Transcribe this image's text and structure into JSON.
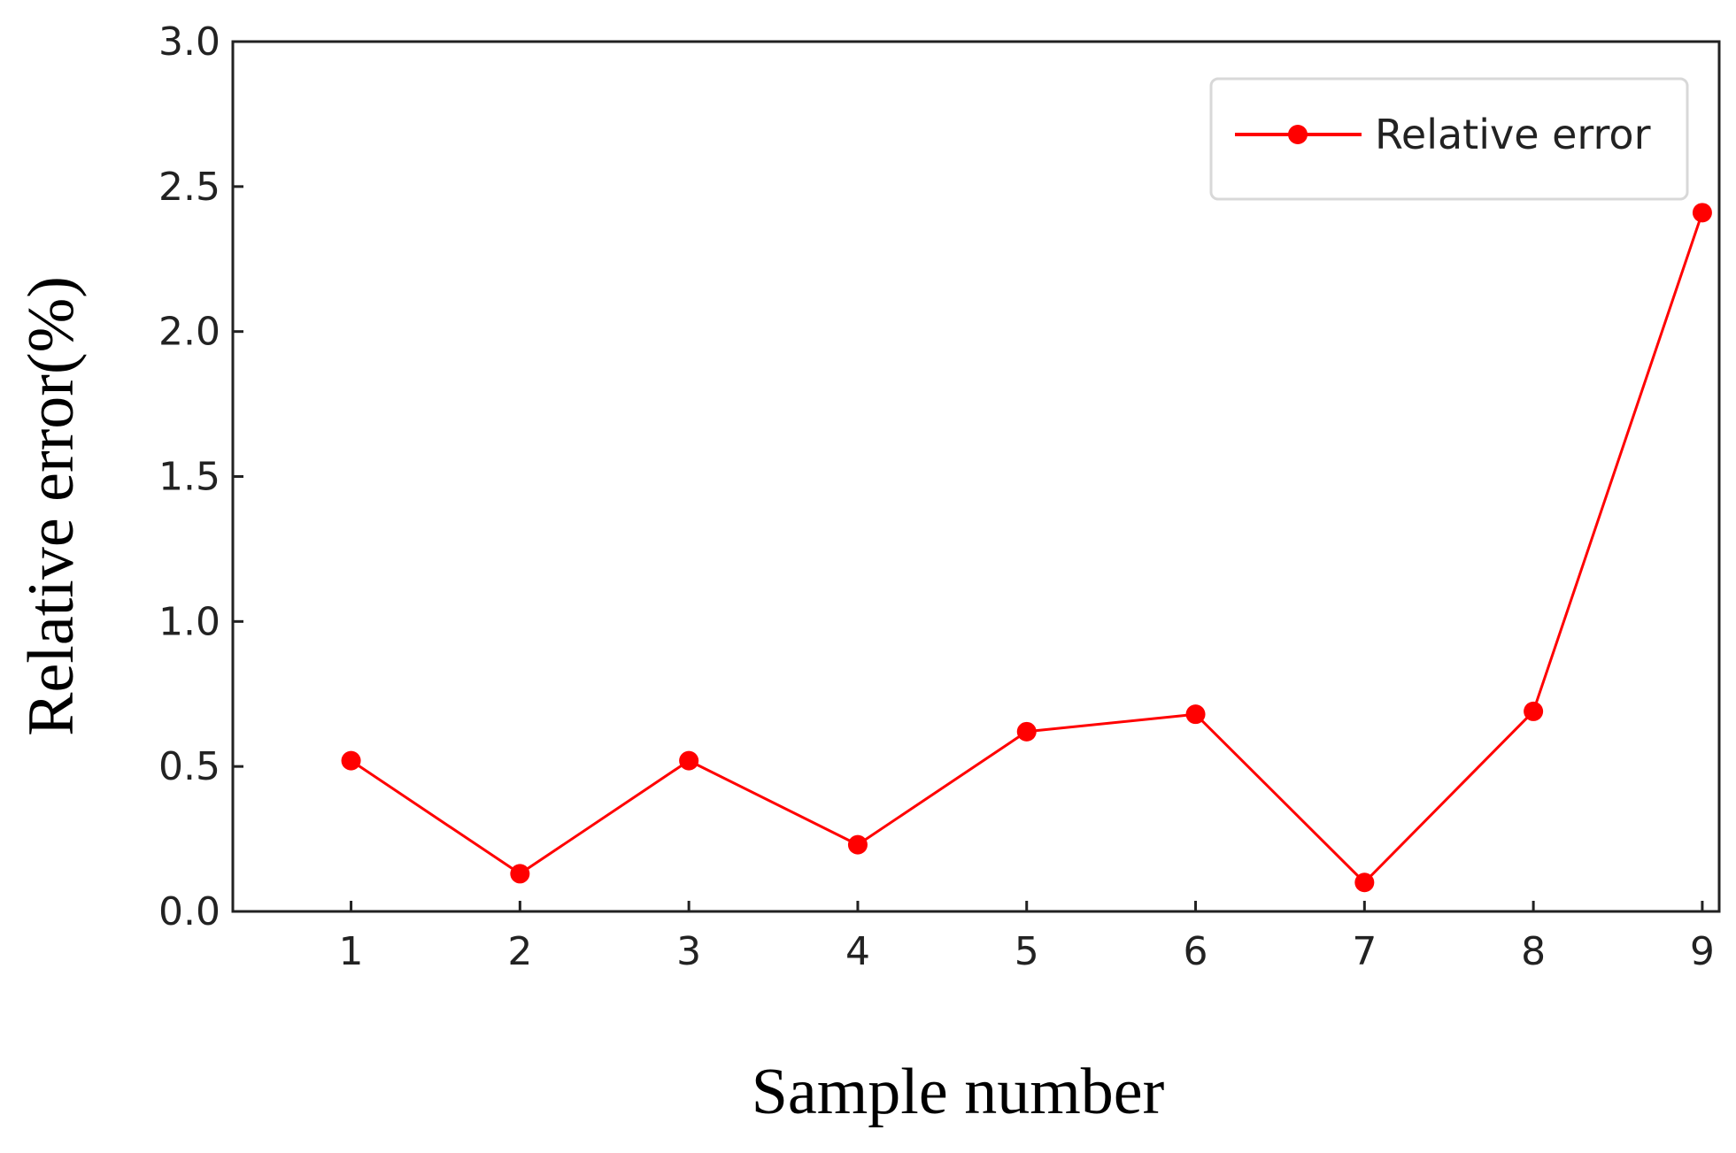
{
  "chart_data": {
    "type": "line",
    "x": [
      1,
      2,
      3,
      4,
      5,
      6,
      7,
      8,
      9
    ],
    "series": [
      {
        "name": "Relative error",
        "values": [
          0.52,
          0.13,
          0.52,
          0.23,
          0.62,
          0.68,
          0.1,
          0.69,
          2.41
        ]
      }
    ],
    "xlabel": "Sample number",
    "ylabel": "Relative error(%)",
    "xlim": [
      0.3,
      9.1
    ],
    "ylim": [
      0.0,
      3.0
    ],
    "xticks": [
      "1",
      "2",
      "3",
      "4",
      "5",
      "6",
      "7",
      "8",
      "9"
    ],
    "yticks": [
      "0.0",
      "0.5",
      "1.0",
      "1.5",
      "2.0",
      "2.5",
      "3.0"
    ],
    "legend_position": "top-right",
    "grid": false,
    "colors": {
      "series": "#ff0000",
      "axes": "#222222",
      "legend_border": "#d8d8d8"
    }
  }
}
